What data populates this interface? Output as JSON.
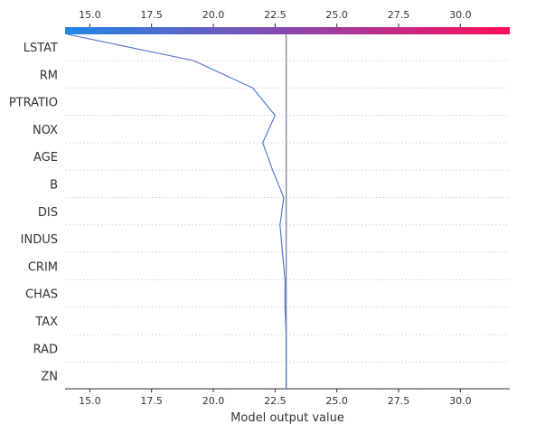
{
  "chart_data": {
    "type": "line",
    "subtype": "decision-plot",
    "title": "",
    "xlabel": "Model output value",
    "ylabel": "",
    "xlim": [
      14.0,
      32.0
    ],
    "x_ticks": [
      15.0,
      17.5,
      20.0,
      22.5,
      25.0,
      27.5,
      30.0
    ],
    "x_tick_labels": [
      "15.0",
      "17.5",
      "20.0",
      "22.5",
      "25.0",
      "27.5",
      "30.0"
    ],
    "features": [
      "LSTAT",
      "RM",
      "PTRATIO",
      "NOX",
      "AGE",
      "B",
      "DIS",
      "INDUS",
      "CRIM",
      "CHAS",
      "TAX",
      "RAD",
      "ZN"
    ],
    "base_value": 22.95,
    "colorbar": {
      "low_color": "#1e88e5",
      "high_color": "#ff0d57"
    },
    "line_color": "#4a6fd6",
    "base_line_color": "#7f8c9d",
    "grid": true,
    "series": [
      {
        "points": [
          {
            "feature": "top",
            "x": 14.1
          },
          {
            "feature": "LSTAT",
            "x": 19.2
          },
          {
            "feature": "RM",
            "x": 21.6
          },
          {
            "feature": "PTRATIO",
            "x": 22.5
          },
          {
            "feature": "NOX",
            "x": 22.0
          },
          {
            "feature": "AGE",
            "x": 22.4
          },
          {
            "feature": "B",
            "x": 22.85
          },
          {
            "feature": "DIS",
            "x": 22.7
          },
          {
            "feature": "INDUS",
            "x": 22.8
          },
          {
            "feature": "CRIM",
            "x": 22.9
          },
          {
            "feature": "CHAS",
            "x": 22.9
          },
          {
            "feature": "TAX",
            "x": 22.95
          },
          {
            "feature": "RAD",
            "x": 22.95
          },
          {
            "feature": "ZN",
            "x": 22.95
          }
        ]
      }
    ]
  }
}
